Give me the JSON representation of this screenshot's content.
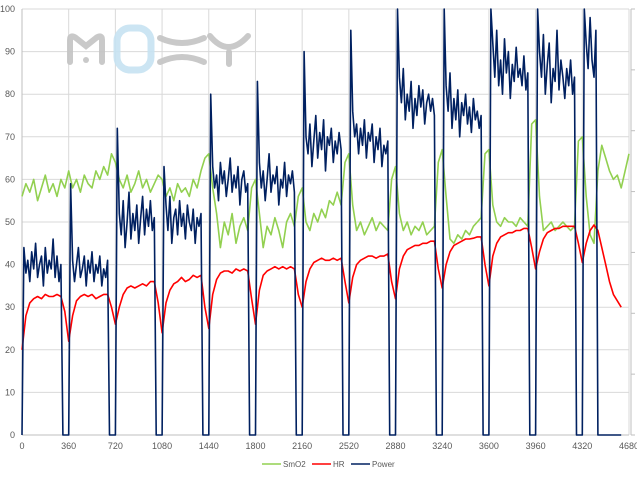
{
  "chart_data": {
    "type": "line",
    "title": "",
    "xlabel": "",
    "ylabel": "",
    "xlim": [
      0,
      4680
    ],
    "ylim": [
      0,
      100
    ],
    "x_ticks": [
      0,
      360,
      720,
      1080,
      1440,
      1800,
      2160,
      2520,
      2880,
      3240,
      3600,
      3960,
      4320,
      4680
    ],
    "y_ticks": [
      0,
      10,
      20,
      30,
      40,
      50,
      60,
      70,
      80,
      90,
      100
    ],
    "grid": true,
    "legend_position": "bottom",
    "watermark": "MOXY",
    "series": [
      {
        "name": "SmO2",
        "color": "#92d050",
        "x_start": 0,
        "x_step": 30,
        "values": [
          56,
          59,
          57,
          60,
          55,
          58,
          61,
          57,
          59,
          56,
          60,
          58,
          62,
          58,
          60,
          57,
          61,
          59,
          58,
          62,
          60,
          63,
          61,
          66,
          64,
          60,
          58,
          61,
          57,
          59,
          62,
          58,
          60,
          57,
          59,
          61,
          60,
          56,
          58,
          55,
          59,
          57,
          58,
          56,
          60,
          58,
          62,
          65,
          66,
          58,
          52,
          44,
          50,
          47,
          52,
          45,
          49,
          51,
          48,
          58,
          60,
          52,
          44,
          49,
          47,
          51,
          48,
          44,
          50,
          52,
          49,
          56,
          58,
          50,
          48,
          52,
          50,
          53,
          51,
          55,
          54,
          57,
          54,
          64,
          66,
          54,
          48,
          50,
          47,
          49,
          51,
          48,
          50,
          49,
          48,
          60,
          63,
          52,
          48,
          50,
          47,
          49,
          48,
          50,
          47,
          48,
          49,
          64,
          67,
          56,
          46,
          45,
          47,
          46,
          48,
          47,
          49,
          50,
          51,
          66,
          67,
          54,
          50,
          49,
          51,
          50,
          50,
          49,
          51,
          50,
          49,
          73,
          74,
          56,
          48,
          49,
          50,
          48,
          49,
          50,
          49,
          48,
          49,
          69,
          70,
          56,
          47,
          45,
          62,
          68,
          65,
          62,
          60,
          61,
          58,
          62,
          66
        ]
      },
      {
        "name": "HR",
        "color": "#ff0000",
        "x_start": 0,
        "x_step": 30,
        "values": [
          20,
          28,
          31,
          32,
          32.5,
          32,
          33,
          32.5,
          32.5,
          33,
          32.5,
          29,
          22,
          28,
          31.5,
          32.5,
          33,
          32.5,
          33,
          32,
          32.5,
          33,
          33,
          30,
          26,
          30,
          33,
          34.5,
          35,
          34.5,
          35,
          35.5,
          35,
          36,
          36,
          31,
          24,
          31,
          34,
          35.5,
          36,
          37,
          36,
          36.5,
          37.5,
          37,
          37.5,
          30,
          25,
          33,
          36.5,
          38,
          38.5,
          38.5,
          38,
          39,
          38.5,
          39,
          38.5,
          32,
          26,
          34,
          37.5,
          38.5,
          39,
          39.5,
          39,
          39.5,
          39,
          39.5,
          39,
          33,
          30,
          36,
          39,
          40.5,
          41,
          41.5,
          41,
          41,
          41.5,
          41,
          41.5,
          36,
          31,
          37,
          40,
          41,
          41.5,
          42,
          42,
          41.5,
          42,
          42,
          42.5,
          36,
          32,
          39,
          42,
          43.5,
          44,
          44.5,
          44.5,
          45,
          45,
          45.5,
          45.5,
          39,
          34.5,
          40,
          43,
          44.5,
          45,
          45.5,
          46,
          46,
          46.2,
          46.5,
          46.5,
          40,
          35,
          42,
          45,
          46.5,
          47,
          47.5,
          47.5,
          48,
          48,
          48.5,
          48.5,
          44,
          39,
          43,
          46,
          47.5,
          48,
          48.5,
          48.5,
          49,
          49,
          49,
          49,
          45,
          40.5,
          45,
          48,
          49.3,
          48,
          44,
          40,
          36,
          33,
          31.5,
          30
        ]
      },
      {
        "name": "Power",
        "color": "#002060",
        "x_start": 0,
        "x_step": 15,
        "values": [
          0,
          44,
          38,
          41,
          36,
          43,
          39,
          45,
          37,
          40,
          42,
          35,
          44,
          38,
          41,
          39,
          46,
          37,
          42,
          36,
          40,
          0,
          0,
          0,
          0,
          59,
          41,
          36,
          40,
          44,
          37,
          39,
          42,
          35,
          41,
          38,
          43,
          36,
          40,
          38,
          42,
          35,
          39,
          37,
          41,
          0,
          0,
          0,
          0,
          72,
          52,
          47,
          55,
          44,
          50,
          57,
          46,
          52,
          48,
          54,
          45,
          51,
          56,
          47,
          53,
          49,
          55,
          48,
          51,
          0,
          0,
          0,
          0,
          63,
          54,
          48,
          56,
          45,
          51,
          53,
          47,
          55,
          49,
          52,
          46,
          54,
          50,
          48,
          53,
          45,
          51,
          49,
          52,
          0,
          0,
          0,
          0,
          80,
          63,
          58,
          61,
          55,
          64,
          59,
          62,
          56,
          60,
          65,
          57,
          61,
          58,
          63,
          54,
          60,
          62,
          57,
          59,
          0,
          0,
          0,
          0,
          83,
          64,
          58,
          62,
          55,
          60,
          66,
          57,
          61,
          59,
          63,
          54,
          60,
          58,
          64,
          56,
          61,
          59,
          62,
          57,
          0,
          0,
          0,
          0,
          90,
          70,
          66,
          73,
          63,
          69,
          75,
          65,
          71,
          67,
          74,
          62,
          70,
          68,
          72,
          64,
          69,
          66,
          71,
          67,
          0,
          0,
          0,
          0,
          95,
          76,
          70,
          73,
          66,
          72,
          68,
          74,
          65,
          71,
          69,
          73,
          64,
          70,
          67,
          72,
          63,
          68,
          66,
          69,
          0,
          0,
          0,
          0,
          100,
          84,
          78,
          86,
          74,
          80,
          76,
          83,
          72,
          79,
          75,
          82,
          77,
          81,
          73,
          78,
          80,
          76,
          79,
          75,
          0,
          0,
          0,
          0,
          100,
          82,
          76,
          85,
          72,
          79,
          74,
          81,
          70,
          78,
          75,
          80,
          73,
          77,
          71,
          79,
          74,
          76,
          72,
          75,
          0,
          0,
          0,
          0,
          100,
          92,
          84,
          95,
          82,
          88,
          80,
          93,
          85,
          90,
          79,
          87,
          83,
          91,
          84,
          86,
          82,
          89,
          81,
          85,
          0,
          0,
          0,
          0,
          100,
          90,
          84,
          94,
          80,
          87,
          92,
          78,
          86,
          83,
          95,
          81,
          88,
          84,
          79,
          86,
          82,
          88,
          80,
          84,
          0,
          0,
          0,
          0,
          100,
          92,
          86,
          98,
          88,
          84,
          95,
          0,
          0,
          0,
          0,
          0,
          0,
          0,
          0,
          0,
          0,
          0,
          0,
          0
        ]
      }
    ]
  }
}
